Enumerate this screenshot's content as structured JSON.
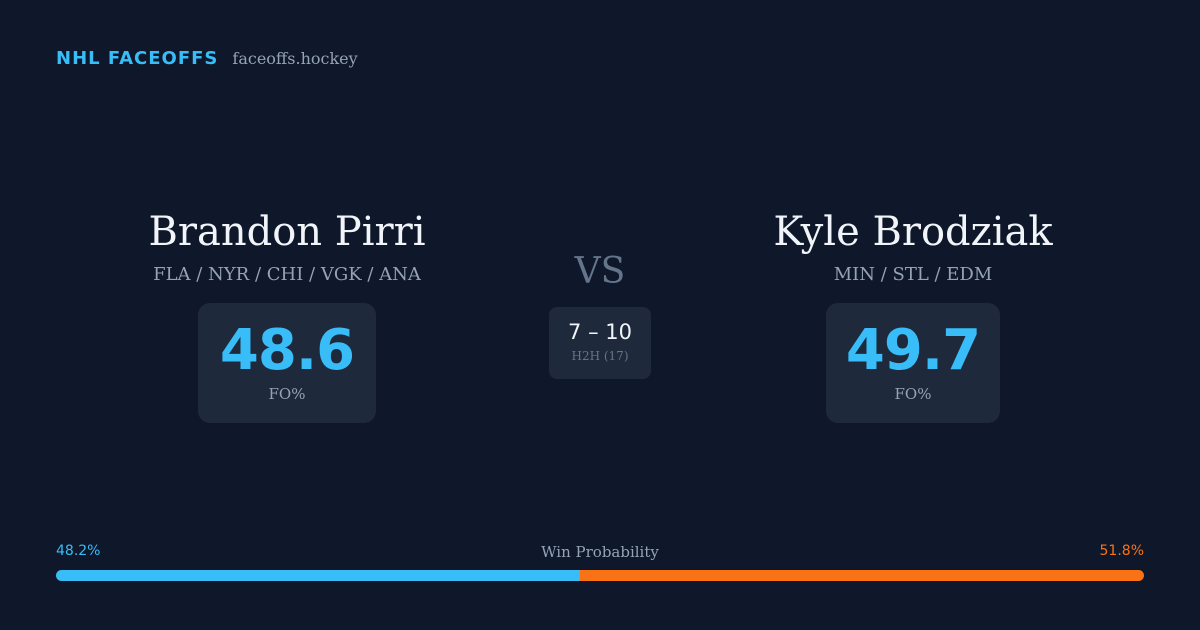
{
  "brand": {
    "title": "NHL FACEOFFS",
    "site": "faceoffs.hockey"
  },
  "player_left": {
    "name": "Brandon Pirri",
    "teams": "FLA / NYR / CHI / VGK / ANA",
    "fo_pct": "48.6",
    "fo_label": "FO%"
  },
  "player_right": {
    "name": "Kyle Brodziak",
    "teams": "MIN / STL / EDM",
    "fo_pct": "49.7",
    "fo_label": "FO%"
  },
  "matchup": {
    "vs_label": "VS",
    "h2h_score": "7 – 10",
    "h2h_label": "H2H (17)"
  },
  "win_probability": {
    "title": "Win Probability",
    "left_label": "48.2%",
    "right_label": "51.8%",
    "left_value": 48.2,
    "right_value": 51.8
  },
  "colors": {
    "background": "#0f172a",
    "card": "#1e293b",
    "accent_blue": "#38bdf8",
    "accent_orange": "#f97316",
    "muted_text": "#94a3b8"
  }
}
